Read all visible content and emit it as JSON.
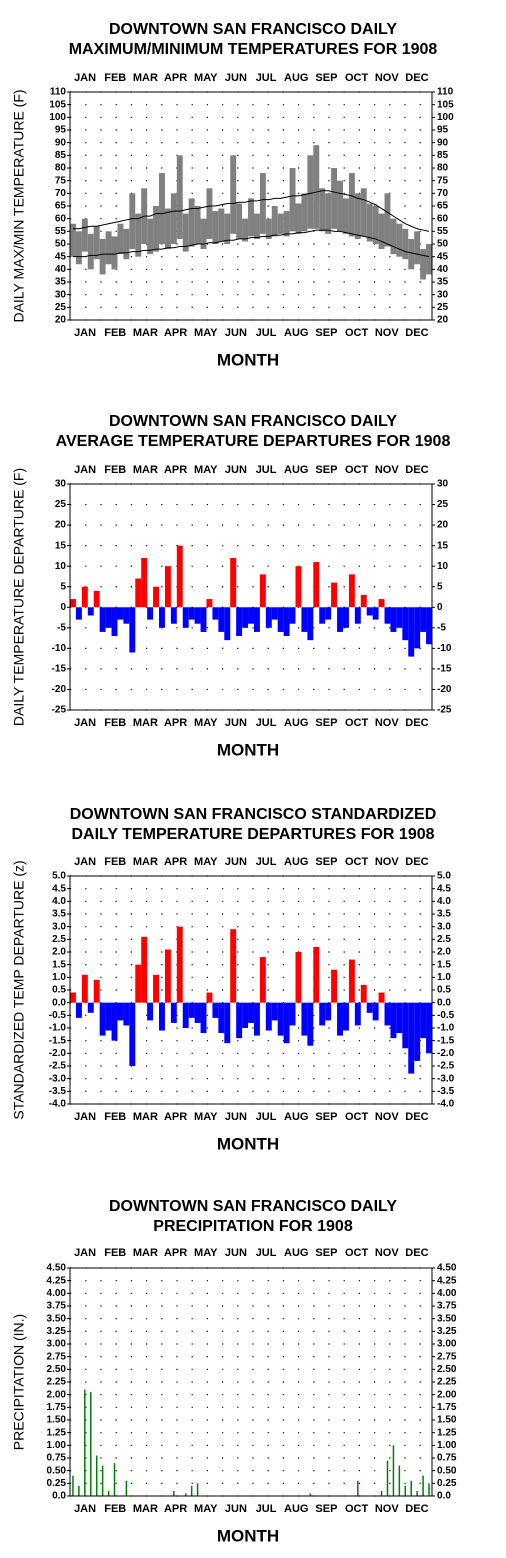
{
  "chart_data": [
    {
      "type": "range",
      "title": [
        "DOWNTOWN SAN FRANCISCO DAILY",
        "MAXIMUM/MINIMUM TEMPERATURES FOR 1908"
      ],
      "y_label": "DAILY MAX/MIN TEMPERATURE (F)",
      "x_label": "MONTH",
      "months": [
        "JAN",
        "FEB",
        "MAR",
        "APR",
        "MAY",
        "JUN",
        "JUL",
        "AUG",
        "SEP",
        "OCT",
        "NOV",
        "DEC"
      ],
      "x": [
        1,
        7,
        13,
        19,
        25,
        31,
        37,
        43,
        49,
        55,
        61,
        67,
        73,
        79,
        85,
        91,
        97,
        103,
        109,
        115,
        121,
        127,
        133,
        139,
        145,
        151,
        157,
        163,
        169,
        175,
        181,
        187,
        193,
        199,
        205,
        211,
        217,
        223,
        229,
        235,
        241,
        247,
        253,
        259,
        265,
        271,
        277,
        283,
        289,
        295,
        301,
        307,
        313,
        319,
        325,
        331,
        337,
        343,
        349,
        355,
        361
      ],
      "xlim": [
        1,
        366
      ],
      "ylim": [
        20,
        110
      ],
      "yticks": [
        20,
        25,
        30,
        35,
        40,
        45,
        50,
        55,
        60,
        65,
        70,
        75,
        80,
        85,
        90,
        95,
        100,
        105,
        110
      ],
      "range_color": "#808080",
      "normal_color": "#000000",
      "max_values": [
        58,
        55,
        60,
        54,
        57,
        52,
        55,
        53,
        58,
        56,
        70,
        62,
        72,
        60,
        65,
        78,
        64,
        70,
        85,
        62,
        68,
        65,
        60,
        72,
        63,
        64,
        62,
        85,
        66,
        60,
        68,
        62,
        78,
        60,
        65,
        62,
        63,
        80,
        66,
        70,
        85,
        89,
        72,
        70,
        80,
        75,
        68,
        78,
        70,
        72,
        66,
        65,
        62,
        70,
        60,
        58,
        56,
        52,
        55,
        48,
        50
      ],
      "min_values": [
        45,
        42,
        47,
        40,
        44,
        38,
        42,
        40,
        46,
        44,
        48,
        45,
        50,
        46,
        47,
        50,
        48,
        50,
        52,
        47,
        49,
        50,
        48,
        52,
        50,
        51,
        50,
        54,
        52,
        51,
        53,
        52,
        54,
        52,
        53,
        54,
        53,
        55,
        54,
        55,
        56,
        56,
        55,
        54,
        56,
        55,
        54,
        53,
        52,
        53,
        51,
        50,
        48,
        49,
        46,
        45,
        44,
        40,
        42,
        36,
        38
      ],
      "normal_max": [
        56,
        56,
        56.5,
        57,
        57,
        57.5,
        58,
        58.5,
        59,
        59.5,
        60,
        60,
        61,
        61,
        62,
        62,
        62.5,
        63,
        63,
        63.5,
        64,
        64,
        64.5,
        65,
        65,
        65.5,
        66,
        66,
        66.5,
        66.5,
        67,
        67,
        67.5,
        67.5,
        68,
        68,
        68.5,
        69,
        69,
        69.5,
        70,
        70.5,
        71,
        71,
        70.5,
        70,
        69.5,
        69,
        68,
        67.5,
        66.5,
        65.5,
        64,
        62.5,
        61,
        59.5,
        58,
        57,
        56,
        55.5,
        55
      ],
      "normal_min": [
        45,
        45,
        45,
        45.5,
        45.5,
        46,
        46,
        46,
        46.5,
        46.5,
        47,
        47,
        47.5,
        47.5,
        48,
        48,
        48.5,
        48.5,
        49,
        49,
        49.5,
        50,
        50,
        50.5,
        50.5,
        51,
        51.5,
        51.5,
        52,
        52,
        52.5,
        52.5,
        53,
        53,
        53.5,
        53.5,
        54,
        54,
        54.5,
        54.5,
        55,
        55.5,
        55.5,
        55.5,
        55,
        55,
        54.5,
        54,
        53.5,
        53,
        52.5,
        52,
        51,
        50,
        49,
        48,
        47,
        46.5,
        46,
        45.5,
        45
      ]
    },
    {
      "type": "bar",
      "title": [
        "DOWNTOWN SAN FRANCISCO DAILY",
        "AVERAGE TEMPERATURE DEPARTURES FOR 1908"
      ],
      "y_label": "DAILY TEMPERATURE DEPARTURE (F)",
      "x_label": "MONTH",
      "months": [
        "JAN",
        "FEB",
        "MAR",
        "APR",
        "MAY",
        "JUN",
        "JUL",
        "AUG",
        "SEP",
        "OCT",
        "NOV",
        "DEC"
      ],
      "x": [
        1,
        7,
        13,
        19,
        25,
        31,
        37,
        43,
        49,
        55,
        61,
        67,
        73,
        79,
        85,
        91,
        97,
        103,
        109,
        115,
        121,
        127,
        133,
        139,
        145,
        151,
        157,
        163,
        169,
        175,
        181,
        187,
        193,
        199,
        205,
        211,
        217,
        223,
        229,
        235,
        241,
        247,
        253,
        259,
        265,
        271,
        277,
        283,
        289,
        295,
        301,
        307,
        313,
        319,
        325,
        331,
        337,
        343,
        349,
        355,
        361
      ],
      "xlim": [
        1,
        366
      ],
      "ylim": [
        -25,
        30
      ],
      "yticks": [
        -25,
        -20,
        -15,
        -10,
        -5,
        0,
        5,
        10,
        15,
        20,
        25,
        30
      ],
      "positive_color": "#ff0000",
      "negative_color": "#0000ff",
      "values": [
        2,
        -3,
        5,
        -2,
        4,
        -6,
        -5,
        -7,
        -3,
        -4,
        -11,
        7,
        12,
        -3,
        5,
        -5,
        10,
        -4,
        15,
        -5,
        -3,
        -4,
        -6,
        2,
        -3,
        -6,
        -8,
        12,
        -7,
        -5,
        -4,
        -6,
        8,
        -5,
        -3,
        -6,
        -7,
        -4,
        10,
        -6,
        -8,
        11,
        -4,
        -3,
        6,
        -6,
        -5,
        8,
        -4,
        3,
        -2,
        -3,
        2,
        -4,
        -6,
        -5,
        -8,
        -12,
        -10,
        -6,
        -9
      ]
    },
    {
      "type": "bar",
      "title": [
        "DOWNTOWN SAN FRANCISCO STANDARDIZED",
        "DAILY TEMPERATURE DEPARTURES FOR 1908"
      ],
      "y_label": "STANDARDIZED TEMP DEPARTURE (z)",
      "x_label": "MONTH",
      "months": [
        "JAN",
        "FEB",
        "MAR",
        "APR",
        "MAY",
        "JUN",
        "JUL",
        "AUG",
        "SEP",
        "OCT",
        "NOV",
        "DEC"
      ],
      "x": [
        1,
        7,
        13,
        19,
        25,
        31,
        37,
        43,
        49,
        55,
        61,
        67,
        73,
        79,
        85,
        91,
        97,
        103,
        109,
        115,
        121,
        127,
        133,
        139,
        145,
        151,
        157,
        163,
        169,
        175,
        181,
        187,
        193,
        199,
        205,
        211,
        217,
        223,
        229,
        235,
        241,
        247,
        253,
        259,
        265,
        271,
        277,
        283,
        289,
        295,
        301,
        307,
        313,
        319,
        325,
        331,
        337,
        343,
        349,
        355,
        361
      ],
      "xlim": [
        1,
        366
      ],
      "ylim": [
        -4,
        5
      ],
      "yticks": [
        {
          "value": -4,
          "label": "-4.0"
        },
        -3.5,
        {
          "value": -3,
          "label": "-3.0"
        },
        -2.5,
        {
          "value": -2,
          "label": "-2.0"
        },
        -1.5,
        {
          "value": -1,
          "label": "-1.0"
        },
        -0.5,
        {
          "value": 0,
          "label": "0.0"
        },
        0.5,
        {
          "value": 1,
          "label": "1.0"
        },
        1.5,
        {
          "value": 2,
          "label": "2.0"
        },
        2.5,
        {
          "value": 3,
          "label": "3.0"
        },
        3.5,
        {
          "value": 4,
          "label": "4.0"
        },
        4.5,
        {
          "value": 5,
          "label": "5.0"
        }
      ],
      "positive_color": "#ff0000",
      "negative_color": "#0000ff",
      "values": [
        0.4,
        -0.6,
        1.1,
        -0.4,
        0.9,
        -1.3,
        -1.1,
        -1.5,
        -0.7,
        -0.9,
        -2.5,
        1.5,
        2.6,
        -0.7,
        1.1,
        -1.1,
        2.1,
        -0.8,
        3.0,
        -1.0,
        -0.6,
        -0.8,
        -1.2,
        0.4,
        -0.6,
        -1.2,
        -1.6,
        2.9,
        -1.4,
        -1.0,
        -0.8,
        -1.3,
        1.8,
        -1.1,
        -0.7,
        -1.3,
        -1.6,
        -0.9,
        2.0,
        -1.3,
        -1.7,
        2.2,
        -0.9,
        -0.7,
        1.3,
        -1.3,
        -1.1,
        1.7,
        -0.9,
        0.7,
        -0.4,
        -0.7,
        0.4,
        -0.9,
        -1.4,
        -1.2,
        -1.8,
        -2.8,
        -2.3,
        -1.4,
        -2.0
      ]
    },
    {
      "type": "precip",
      "title": [
        "DOWNTOWN SAN FRANCISCO DAILY",
        "PRECIPITATION FOR 1908"
      ],
      "y_label": "PRECIPITATION (IN.)",
      "x_label": "MONTH",
      "months": [
        "JAN",
        "FEB",
        "MAR",
        "APR",
        "MAY",
        "JUN",
        "JUL",
        "AUG",
        "SEP",
        "OCT",
        "NOV",
        "DEC"
      ],
      "x": [
        1,
        7,
        13,
        19,
        25,
        31,
        37,
        43,
        49,
        55,
        61,
        67,
        73,
        79,
        85,
        91,
        97,
        103,
        109,
        115,
        121,
        127,
        133,
        139,
        145,
        151,
        157,
        163,
        169,
        175,
        181,
        187,
        193,
        199,
        205,
        211,
        217,
        223,
        229,
        235,
        241,
        247,
        253,
        259,
        265,
        271,
        277,
        283,
        289,
        295,
        301,
        307,
        313,
        319,
        325,
        331,
        337,
        343,
        349,
        355,
        361
      ],
      "xlim": [
        1,
        366
      ],
      "ylim": [
        0,
        4.5
      ],
      "yticks": [
        {
          "value": 0,
          "label": "0.0"
        },
        0.25,
        {
          "value": 0.5,
          "label": "0.50"
        },
        0.75,
        {
          "value": 1,
          "label": "1.00"
        },
        1.25,
        {
          "value": 1.5,
          "label": "1.50"
        },
        1.75,
        {
          "value": 2,
          "label": "2.00"
        },
        2.25,
        {
          "value": 2.5,
          "label": "2.50"
        },
        2.75,
        {
          "value": 3,
          "label": "3.00"
        },
        3.25,
        {
          "value": 3.5,
          "label": "3.50"
        },
        3.75,
        {
          "value": 4,
          "label": "4.00"
        },
        4.25,
        {
          "value": 4.5,
          "label": "4.50"
        }
      ],
      "color": "#008000",
      "values": [
        0.4,
        0.2,
        2.1,
        2.05,
        0.8,
        0.6,
        0.1,
        0.65,
        0,
        0.3,
        0,
        0,
        0,
        0,
        0,
        0,
        0,
        0.1,
        0,
        0.05,
        0.2,
        0.25,
        0,
        0,
        0,
        0,
        0,
        0,
        0,
        0,
        0,
        0,
        0,
        0,
        0,
        0,
        0,
        0,
        0,
        0,
        0.05,
        0,
        0,
        0,
        0,
        0,
        0,
        0,
        0.3,
        0,
        0,
        0,
        0.1,
        0.7,
        1.0,
        0.6,
        0.2,
        0.3,
        0.1,
        0.4,
        0.25
      ]
    }
  ]
}
